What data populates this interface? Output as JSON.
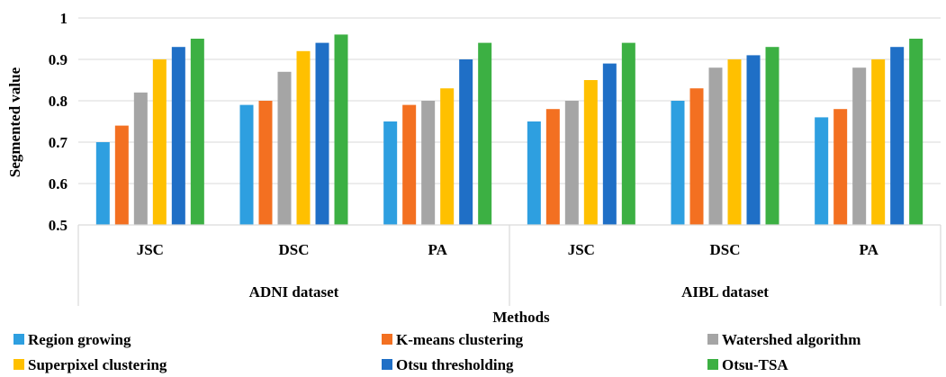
{
  "chart_data": {
    "type": "bar",
    "xlabel": "Methods",
    "ylabel": "Segmented value",
    "ylim": [
      0.5,
      1
    ],
    "yticks": [
      "0.5",
      "0.6",
      "0.7",
      "0.8",
      "0.9",
      "1"
    ],
    "grid": true,
    "legend_position": "bottom",
    "groups": [
      {
        "name": "ADNI dataset",
        "categories": [
          "JSC",
          "DSC",
          "PA"
        ]
      },
      {
        "name": "AIBL dataset",
        "categories": [
          "JSC",
          "DSC",
          "PA"
        ]
      }
    ],
    "series": [
      {
        "name": "Region growing",
        "color": "#2E9FE0",
        "values": [
          0.7,
          0.79,
          0.75,
          0.75,
          0.8,
          0.76
        ]
      },
      {
        "name": "K-means clustering",
        "color": "#F37021",
        "values": [
          0.74,
          0.8,
          0.79,
          0.78,
          0.83,
          0.78
        ]
      },
      {
        "name": "Watershed algorithm",
        "color": "#A5A5A5",
        "values": [
          0.82,
          0.87,
          0.8,
          0.8,
          0.88,
          0.88
        ]
      },
      {
        "name": "Superpixel clustering",
        "color": "#FFC000",
        "values": [
          0.9,
          0.92,
          0.83,
          0.85,
          0.9,
          0.9
        ]
      },
      {
        "name": "Otsu thresholding",
        "color": "#1F6FC6",
        "values": [
          0.93,
          0.94,
          0.9,
          0.89,
          0.91,
          0.93
        ]
      },
      {
        "name": "Otsu-TSA",
        "color": "#3CB043",
        "values": [
          0.95,
          0.96,
          0.94,
          0.94,
          0.93,
          0.95
        ]
      }
    ]
  }
}
